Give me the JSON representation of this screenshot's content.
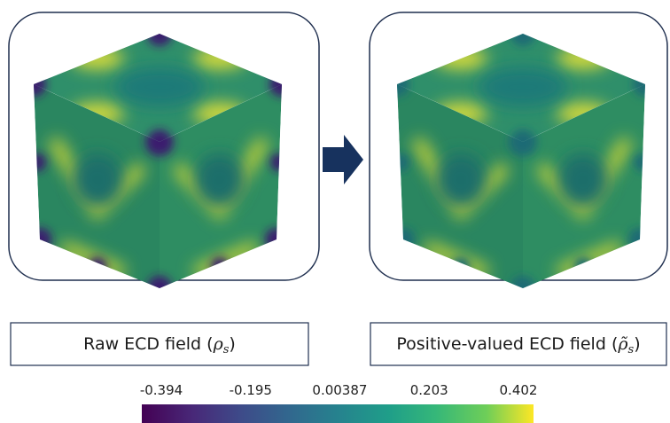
{
  "panels": [
    {
      "caption": {
        "text": "Raw ECD field (",
        "symbol": "ρ",
        "sub": "s",
        "close": ")"
      }
    },
    {
      "caption": {
        "text": "Positive-valued ECD field (",
        "symbol": "ρ̃",
        "sub": "s",
        "close": ")"
      }
    }
  ],
  "colorbar": {
    "lim": [
      -0.394,
      0.402
    ],
    "ticks": [
      -0.394,
      -0.195,
      0.00387,
      0.203,
      0.402
    ]
  }
}
